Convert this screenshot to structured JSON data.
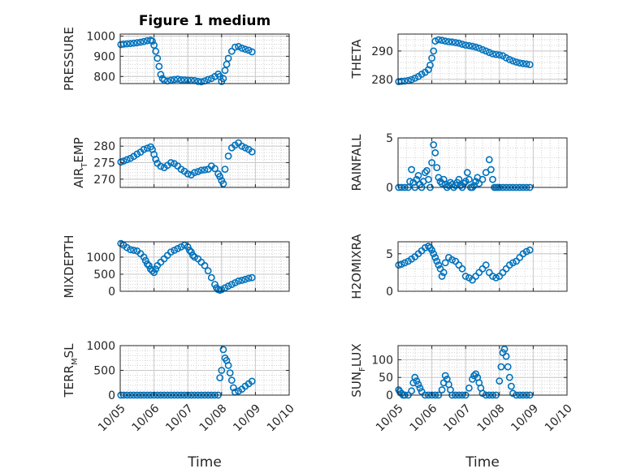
{
  "figure": {
    "title": "Figure 1 medium",
    "xlabel": "Time",
    "x_tick_labels": [
      "10/05",
      "10/06",
      "10/07",
      "10/08",
      "10/09",
      "10/10"
    ],
    "marker_color": "#0072BD"
  },
  "chart_data": [
    {
      "type": "scatter",
      "name": "PRESSURE",
      "ylabel": "PRESSURE",
      "ylabel_main": "PRESSURE",
      "ylabel_sub": "",
      "ylim": [
        765,
        1010
      ],
      "yticks": [
        800,
        900,
        1000
      ],
      "ytick_labels": [
        "800",
        "900",
        "1000"
      ],
      "xlim": [
        0,
        5
      ],
      "x": [
        0.02,
        0.1,
        0.2,
        0.3,
        0.4,
        0.5,
        0.6,
        0.7,
        0.8,
        0.9,
        0.95,
        1.0,
        1.05,
        1.1,
        1.15,
        1.2,
        1.25,
        1.3,
        1.4,
        1.5,
        1.6,
        1.7,
        1.8,
        1.9,
        2.0,
        2.1,
        2.2,
        2.3,
        2.4,
        2.5,
        2.6,
        2.7,
        2.8,
        2.9,
        2.95,
        3.0,
        3.05,
        3.1,
        3.15,
        3.2,
        3.3,
        3.4,
        3.5,
        3.6,
        3.7,
        3.8,
        3.9
      ],
      "y": [
        958,
        960,
        962,
        963,
        965,
        967,
        970,
        973,
        977,
        980,
        975,
        955,
        925,
        890,
        850,
        810,
        790,
        782,
        778,
        782,
        785,
        787,
        784,
        783,
        782,
        781,
        780,
        776,
        774,
        778,
        785,
        790,
        800,
        812,
        800,
        775,
        790,
        830,
        860,
        890,
        925,
        945,
        948,
        940,
        935,
        930,
        922
      ]
    },
    {
      "type": "scatter",
      "name": "THETA",
      "ylabel": "THETA",
      "ylabel_main": "THETA",
      "ylabel_sub": "",
      "ylim": [
        278.5,
        296
      ],
      "yticks": [
        280,
        290
      ],
      "ytick_labels": [
        "280",
        "290"
      ],
      "xlim": [
        0,
        5
      ],
      "x": [
        0.02,
        0.1,
        0.2,
        0.3,
        0.4,
        0.5,
        0.6,
        0.7,
        0.8,
        0.9,
        0.95,
        1.0,
        1.05,
        1.1,
        1.2,
        1.3,
        1.4,
        1.5,
        1.6,
        1.7,
        1.8,
        1.9,
        2.0,
        2.1,
        2.2,
        2.3,
        2.4,
        2.5,
        2.6,
        2.7,
        2.8,
        2.9,
        3.0,
        3.1,
        3.2,
        3.3,
        3.4,
        3.5,
        3.6,
        3.7,
        3.8,
        3.9
      ],
      "y": [
        279.2,
        279.3,
        279.4,
        279.6,
        279.9,
        280.4,
        281.0,
        281.8,
        282.5,
        283.4,
        285,
        287.5,
        290,
        293.5,
        294,
        293.8,
        293.5,
        293.3,
        293.2,
        293,
        292.8,
        292.4,
        292.1,
        291.9,
        291.7,
        291.4,
        291,
        290.5,
        290,
        289.5,
        289,
        288.8,
        288.6,
        288.3,
        287.6,
        287,
        286.5,
        286.1,
        285.8,
        285.6,
        285.4,
        285.2
      ]
    },
    {
      "type": "scatter",
      "name": "AIR_TEMP",
      "ylabel": "AIR_TEMP",
      "ylabel_main": "AIR",
      "ylabel_sub": "T",
      "ylabel_rest": "EMP",
      "ylim": [
        267.5,
        282.5
      ],
      "yticks": [
        270,
        275,
        280
      ],
      "ytick_labels": [
        "270",
        "275",
        "280"
      ],
      "xlim": [
        0,
        5
      ],
      "x": [
        0.02,
        0.1,
        0.2,
        0.3,
        0.4,
        0.5,
        0.6,
        0.7,
        0.8,
        0.9,
        0.95,
        1.0,
        1.05,
        1.1,
        1.2,
        1.3,
        1.4,
        1.5,
        1.6,
        1.7,
        1.8,
        1.9,
        2.0,
        2.1,
        2.2,
        2.3,
        2.4,
        2.5,
        2.6,
        2.7,
        2.8,
        2.9,
        2.95,
        3.0,
        3.05,
        3.1,
        3.2,
        3.3,
        3.4,
        3.5,
        3.6,
        3.7,
        3.8,
        3.9
      ],
      "y": [
        275.2,
        275.5,
        275.9,
        276.3,
        276.9,
        277.6,
        278.2,
        279,
        279.4,
        279.8,
        279,
        277.5,
        276,
        274.8,
        273.9,
        273.5,
        274.2,
        275,
        274.7,
        274,
        273,
        272.4,
        271.6,
        271.3,
        272,
        272.3,
        272.7,
        272.8,
        273,
        274,
        273.2,
        271.6,
        270.8,
        269.6,
        268.6,
        273,
        277,
        279.5,
        280.3,
        281,
        280,
        279.5,
        279,
        278.3
      ]
    },
    {
      "type": "scatter",
      "name": "RAINFALL",
      "ylabel": "RAINFALL",
      "ylabel_main": "RAINFALL",
      "ylabel_sub": "",
      "ylim": [
        0,
        5
      ],
      "yticks": [
        0,
        5
      ],
      "ytick_labels": [
        "0",
        "5"
      ],
      "xlim": [
        0,
        5
      ],
      "x": [
        0.02,
        0.1,
        0.2,
        0.3,
        0.35,
        0.4,
        0.45,
        0.5,
        0.55,
        0.6,
        0.65,
        0.7,
        0.75,
        0.8,
        0.85,
        0.9,
        0.95,
        1.0,
        1.05,
        1.1,
        1.15,
        1.2,
        1.25,
        1.3,
        1.35,
        1.4,
        1.45,
        1.5,
        1.55,
        1.6,
        1.65,
        1.7,
        1.75,
        1.8,
        1.85,
        1.9,
        1.95,
        2.0,
        2.05,
        2.1,
        2.15,
        2.2,
        2.25,
        2.3,
        2.35,
        2.4,
        2.5,
        2.6,
        2.7,
        2.75,
        2.8,
        2.85,
        2.9,
        2.95,
        3.0,
        3.1,
        3.2,
        3.3,
        3.4,
        3.5,
        3.6,
        3.7,
        3.8,
        3.9
      ],
      "y": [
        0,
        0,
        0,
        0,
        0.6,
        1.8,
        0.5,
        0,
        0.8,
        1.2,
        0.3,
        0,
        0.6,
        1.5,
        1.7,
        0.8,
        0,
        2.5,
        4.3,
        3.5,
        2,
        1,
        0.6,
        0.4,
        0.8,
        0.3,
        0,
        0.2,
        0.5,
        0.3,
        0,
        0.2,
        0.5,
        0.8,
        0.2,
        0,
        0.4,
        0.6,
        1.5,
        0.8,
        0,
        0,
        0.2,
        0.6,
        1,
        0.4,
        0.8,
        1.5,
        2.8,
        1.8,
        0.8,
        0,
        0,
        0,
        0,
        0,
        0,
        0,
        0,
        0,
        0,
        0,
        0,
        0
      ]
    },
    {
      "type": "scatter",
      "name": "MIXDEPTH",
      "ylabel": "MIXDEPTH",
      "ylabel_main": "MIXDEPTH",
      "ylabel_sub": "",
      "ylim": [
        0,
        1450
      ],
      "yticks": [
        0,
        500,
        1000
      ],
      "ytick_labels": [
        "0",
        "500",
        "1000"
      ],
      "xlim": [
        0,
        5
      ],
      "x": [
        0.02,
        0.1,
        0.2,
        0.3,
        0.4,
        0.5,
        0.6,
        0.7,
        0.75,
        0.8,
        0.85,
        0.9,
        0.95,
        1.0,
        1.05,
        1.1,
        1.2,
        1.3,
        1.4,
        1.5,
        1.6,
        1.7,
        1.8,
        1.9,
        2.0,
        2.05,
        2.1,
        2.15,
        2.2,
        2.3,
        2.4,
        2.5,
        2.6,
        2.7,
        2.8,
        2.85,
        2.9,
        2.95,
        3.0,
        3.1,
        3.2,
        3.3,
        3.4,
        3.5,
        3.6,
        3.7,
        3.8,
        3.9
      ],
      "y": [
        1400,
        1350,
        1280,
        1220,
        1200,
        1180,
        1100,
        1000,
        900,
        800,
        750,
        650,
        600,
        550,
        650,
        750,
        850,
        950,
        1050,
        1150,
        1200,
        1250,
        1300,
        1350,
        1300,
        1200,
        1150,
        1050,
        1000,
        950,
        850,
        750,
        600,
        400,
        200,
        100,
        50,
        30,
        50,
        100,
        150,
        200,
        250,
        300,
        320,
        350,
        380,
        400
      ]
    },
    {
      "type": "scatter",
      "name": "H2OMIXRA",
      "ylabel": "H2OMIXRA",
      "ylabel_main": "H2OMIXRA",
      "ylabel_sub": "",
      "ylim": [
        0,
        6.6
      ],
      "yticks": [
        0,
        5
      ],
      "ytick_labels": [
        "0",
        "5"
      ],
      "xlim": [
        0,
        5
      ],
      "x": [
        0.02,
        0.1,
        0.2,
        0.3,
        0.4,
        0.5,
        0.6,
        0.7,
        0.8,
        0.9,
        0.95,
        1.0,
        1.05,
        1.1,
        1.15,
        1.2,
        1.25,
        1.3,
        1.35,
        1.4,
        1.5,
        1.6,
        1.7,
        1.8,
        1.9,
        2.0,
        2.1,
        2.2,
        2.3,
        2.4,
        2.5,
        2.6,
        2.7,
        2.8,
        2.9,
        3.0,
        3.1,
        3.2,
        3.3,
        3.4,
        3.5,
        3.6,
        3.7,
        3.8,
        3.9
      ],
      "y": [
        3.5,
        3.6,
        3.8,
        4.0,
        4.3,
        4.6,
        5.0,
        5.4,
        5.8,
        6.0,
        5.8,
        5.5,
        5.0,
        4.5,
        4.0,
        3.5,
        3.0,
        2.0,
        2.5,
        3.8,
        4.5,
        4.2,
        4.0,
        3.5,
        3.0,
        2.0,
        1.8,
        1.5,
        2.0,
        2.5,
        3.0,
        3.5,
        2.5,
        2.0,
        1.8,
        2.0,
        2.5,
        3.0,
        3.5,
        3.8,
        4.0,
        4.5,
        5.0,
        5.3,
        5.5
      ]
    },
    {
      "type": "scatter",
      "name": "TERR_MSL",
      "ylabel": "TERR_MSL",
      "ylabel_main": "TERR",
      "ylabel_sub": "M",
      "ylabel_rest": "SL",
      "ylim": [
        0,
        1000
      ],
      "yticks": [
        0,
        500,
        1000
      ],
      "ytick_labels": [
        "0",
        "500",
        "1000"
      ],
      "xlim": [
        0,
        5
      ],
      "x": [
        0.02,
        0.1,
        0.2,
        0.3,
        0.4,
        0.5,
        0.6,
        0.7,
        0.8,
        0.9,
        1.0,
        1.1,
        1.2,
        1.3,
        1.4,
        1.5,
        1.6,
        1.7,
        1.8,
        1.9,
        2.0,
        2.1,
        2.2,
        2.3,
        2.4,
        2.5,
        2.6,
        2.7,
        2.8,
        2.9,
        2.95,
        3.0,
        3.05,
        3.1,
        3.15,
        3.2,
        3.25,
        3.3,
        3.35,
        3.4,
        3.5,
        3.6,
        3.7,
        3.8,
        3.9
      ],
      "y": [
        0,
        0,
        0,
        0,
        0,
        0,
        0,
        0,
        0,
        0,
        0,
        0,
        0,
        0,
        0,
        0,
        0,
        0,
        0,
        0,
        0,
        0,
        0,
        0,
        0,
        0,
        0,
        0,
        0,
        0,
        350,
        500,
        920,
        750,
        700,
        600,
        450,
        300,
        150,
        60,
        80,
        120,
        180,
        230,
        280
      ]
    },
    {
      "type": "scatter",
      "name": "SUN_FLUX",
      "ylabel": "SUN_FLUX",
      "ylabel_main": "SUN",
      "ylabel_sub": "F",
      "ylabel_rest": "LUX",
      "ylim": [
        0,
        140
      ],
      "yticks": [
        0,
        50,
        100
      ],
      "ytick_labels": [
        "0",
        "50",
        "100"
      ],
      "xlim": [
        0,
        5
      ],
      "x": [
        0.02,
        0.05,
        0.1,
        0.15,
        0.2,
        0.3,
        0.4,
        0.45,
        0.5,
        0.55,
        0.6,
        0.65,
        0.7,
        0.8,
        0.9,
        1.0,
        1.1,
        1.2,
        1.3,
        1.35,
        1.4,
        1.45,
        1.5,
        1.55,
        1.6,
        1.7,
        1.8,
        1.9,
        2.0,
        2.1,
        2.2,
        2.25,
        2.3,
        2.35,
        2.4,
        2.45,
        2.5,
        2.6,
        2.7,
        2.8,
        2.9,
        3.0,
        3.05,
        3.1,
        3.15,
        3.2,
        3.25,
        3.3,
        3.35,
        3.4,
        3.5,
        3.6,
        3.7,
        3.8,
        3.9
      ],
      "y": [
        15,
        10,
        5,
        0,
        0,
        0,
        12,
        35,
        50,
        40,
        30,
        20,
        10,
        0,
        0,
        0,
        0,
        0,
        15,
        35,
        55,
        45,
        30,
        15,
        0,
        0,
        0,
        0,
        0,
        20,
        45,
        55,
        60,
        50,
        35,
        20,
        5,
        0,
        0,
        0,
        0,
        40,
        80,
        120,
        130,
        110,
        80,
        50,
        25,
        5,
        0,
        0,
        0,
        0,
        0
      ]
    }
  ]
}
